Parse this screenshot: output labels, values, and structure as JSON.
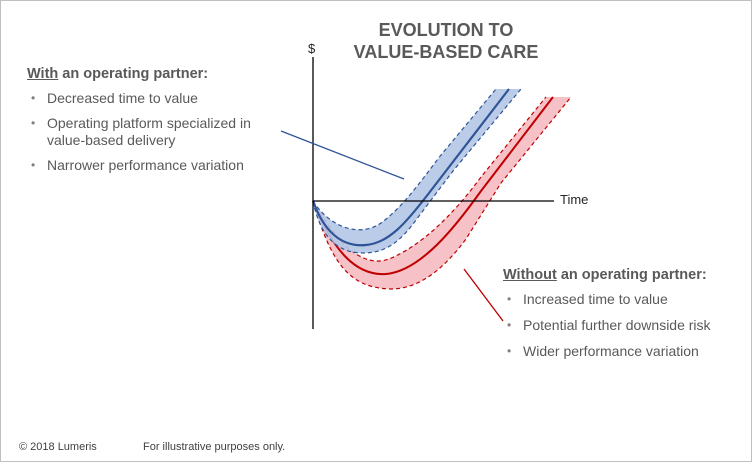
{
  "title": {
    "line1": "EVOLUTION TO",
    "line2": "VALUE-BASED CARE"
  },
  "axes": {
    "y_label": "$",
    "x_label": "Time"
  },
  "with_partner": {
    "heading_emphasis": "With",
    "heading_rest": " an operating partner:",
    "bullets": [
      "Decreased time to value",
      "Operating platform specialized in value-based delivery",
      "Narrower performance variation"
    ]
  },
  "without_partner": {
    "heading_emphasis": "Without",
    "heading_rest": " an operating partner:",
    "bullets": [
      "Increased time to value",
      "Potential further downside risk",
      "Wider performance variation"
    ]
  },
  "footer": {
    "copyright": "© 2018 Lumeris",
    "note": "For illustrative purposes only."
  },
  "colors": {
    "blue_line": "#2f5597",
    "blue_band": "#b4c7e7",
    "red_line": "#c00000",
    "red_band": "#f4b6bd",
    "text": "#595959",
    "axis": "#000000"
  }
}
